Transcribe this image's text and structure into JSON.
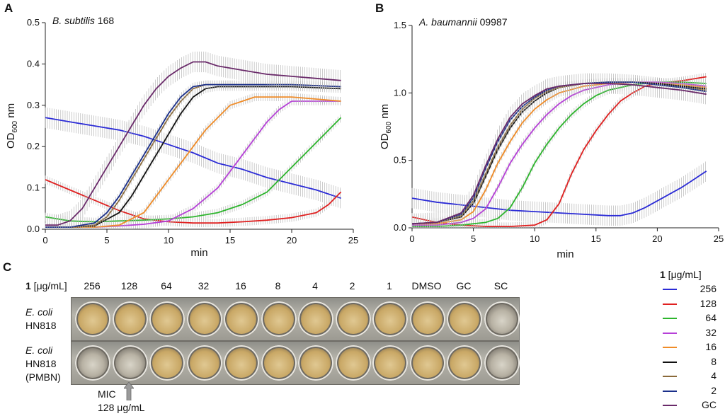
{
  "panels": {
    "a_letter": "A",
    "b_letter": "B",
    "c_letter": "C"
  },
  "series_colors": {
    "256": "#2b2bd6",
    "128": "#e02020",
    "64": "#2db52d",
    "32": "#b640d8",
    "16": "#f08c28",
    "8": "#111111",
    "4": "#8b6a3a",
    "2": "#1a2f8a",
    "GC": "#6a2a6a"
  },
  "chart_data": [
    {
      "type": "line",
      "panel": "A",
      "title_italic": "B. subtilis",
      "title_rest": " 168",
      "xlabel": "min",
      "ylabel_main": "OD",
      "ylabel_sub": "600",
      "ylabel_tail": " nm",
      "xlim": [
        0,
        25
      ],
      "ylim": [
        0,
        0.5
      ],
      "xticks": [
        "0",
        "5",
        "10",
        "15",
        "20",
        "25"
      ],
      "yticks": [
        "0.0",
        "0.1",
        "0.2",
        "0.3",
        "0.4",
        "0.5"
      ],
      "series": [
        {
          "name": "256",
          "x": [
            0,
            2,
            4,
            6,
            8,
            10,
            12,
            14,
            16,
            18,
            20,
            22,
            24
          ],
          "y": [
            0.27,
            0.26,
            0.25,
            0.24,
            0.225,
            0.205,
            0.185,
            0.16,
            0.145,
            0.125,
            0.11,
            0.095,
            0.075
          ]
        },
        {
          "name": "128",
          "x": [
            0,
            2,
            4,
            6,
            8,
            10,
            12,
            14,
            16,
            18,
            20,
            22,
            23,
            24
          ],
          "y": [
            0.12,
            0.095,
            0.07,
            0.045,
            0.025,
            0.018,
            0.015,
            0.015,
            0.018,
            0.022,
            0.028,
            0.04,
            0.06,
            0.09
          ]
        },
        {
          "name": "64",
          "x": [
            0,
            2,
            4,
            6,
            8,
            10,
            12,
            14,
            16,
            18,
            19,
            20,
            21,
            22,
            23,
            24
          ],
          "y": [
            0.03,
            0.02,
            0.018,
            0.02,
            0.022,
            0.025,
            0.03,
            0.04,
            0.06,
            0.09,
            0.12,
            0.15,
            0.18,
            0.21,
            0.24,
            0.27
          ]
        },
        {
          "name": "32",
          "x": [
            0,
            2,
            4,
            6,
            8,
            10,
            12,
            14,
            15,
            16,
            17,
            18,
            19,
            20,
            22,
            24
          ],
          "y": [
            0.005,
            0.005,
            0.005,
            0.008,
            0.012,
            0.02,
            0.05,
            0.1,
            0.14,
            0.18,
            0.22,
            0.26,
            0.29,
            0.31,
            0.31,
            0.31
          ]
        },
        {
          "name": "16",
          "x": [
            0,
            2,
            4,
            6,
            8,
            9,
            10,
            11,
            12,
            13,
            14,
            15,
            16,
            17,
            20,
            24
          ],
          "y": [
            0.005,
            0.005,
            0.005,
            0.01,
            0.04,
            0.08,
            0.12,
            0.16,
            0.2,
            0.24,
            0.27,
            0.3,
            0.31,
            0.32,
            0.32,
            0.31
          ]
        },
        {
          "name": "8",
          "x": [
            0,
            2,
            4,
            6,
            7,
            8,
            9,
            10,
            11,
            12,
            13,
            14,
            16,
            20,
            24
          ],
          "y": [
            0.005,
            0.005,
            0.008,
            0.04,
            0.08,
            0.13,
            0.18,
            0.23,
            0.28,
            0.32,
            0.34,
            0.345,
            0.345,
            0.345,
            0.34
          ]
        },
        {
          "name": "4",
          "x": [
            0,
            2,
            4,
            5,
            6,
            7,
            8,
            9,
            10,
            11,
            12,
            13,
            14,
            16,
            20,
            24
          ],
          "y": [
            0.005,
            0.005,
            0.01,
            0.03,
            0.07,
            0.12,
            0.17,
            0.22,
            0.27,
            0.31,
            0.34,
            0.35,
            0.35,
            0.35,
            0.35,
            0.345
          ]
        },
        {
          "name": "2",
          "x": [
            0,
            2,
            4,
            5,
            6,
            7,
            8,
            9,
            10,
            11,
            12,
            13,
            14,
            16,
            20,
            24
          ],
          "y": [
            0.005,
            0.005,
            0.015,
            0.04,
            0.08,
            0.13,
            0.18,
            0.23,
            0.28,
            0.32,
            0.345,
            0.35,
            0.35,
            0.35,
            0.35,
            0.345
          ]
        },
        {
          "name": "GC",
          "x": [
            0,
            1,
            2,
            3,
            4,
            5,
            6,
            7,
            8,
            9,
            10,
            11,
            12,
            13,
            14,
            16,
            18,
            20,
            22,
            24
          ],
          "y": [
            0.01,
            0.01,
            0.02,
            0.05,
            0.1,
            0.15,
            0.2,
            0.25,
            0.3,
            0.34,
            0.37,
            0.39,
            0.405,
            0.405,
            0.395,
            0.385,
            0.375,
            0.37,
            0.365,
            0.36
          ]
        }
      ]
    },
    {
      "type": "line",
      "panel": "B",
      "title_italic": "A. baumannii",
      "title_rest": " 09987",
      "xlabel": "min",
      "ylabel_main": "OD",
      "ylabel_sub": "600",
      "ylabel_tail": " nm",
      "xlim": [
        0,
        25
      ],
      "ylim": [
        0,
        1.5
      ],
      "xticks": [
        "0",
        "5",
        "10",
        "15",
        "20",
        "25"
      ],
      "yticks": [
        "0.0",
        "0.5",
        "1.0",
        "1.5"
      ],
      "series": [
        {
          "name": "256",
          "x": [
            0,
            2,
            4,
            6,
            8,
            10,
            12,
            14,
            16,
            17,
            18,
            19,
            20,
            21,
            22,
            23,
            24
          ],
          "y": [
            0.22,
            0.19,
            0.17,
            0.15,
            0.13,
            0.12,
            0.11,
            0.1,
            0.09,
            0.09,
            0.11,
            0.15,
            0.2,
            0.25,
            0.3,
            0.36,
            0.42
          ]
        },
        {
          "name": "128",
          "x": [
            0,
            2,
            4,
            6,
            8,
            10,
            11,
            12,
            13,
            14,
            15,
            16,
            17,
            18,
            19,
            20,
            22,
            24
          ],
          "y": [
            0.08,
            0.04,
            0.02,
            0.01,
            0.01,
            0.02,
            0.06,
            0.18,
            0.4,
            0.58,
            0.72,
            0.84,
            0.94,
            1.0,
            1.05,
            1.07,
            1.09,
            1.12
          ]
        },
        {
          "name": "64",
          "x": [
            0,
            2,
            4,
            6,
            7,
            8,
            9,
            10,
            11,
            12,
            13,
            14,
            15,
            16,
            18,
            20,
            22,
            24
          ],
          "y": [
            0.01,
            0.01,
            0.02,
            0.04,
            0.07,
            0.15,
            0.3,
            0.48,
            0.62,
            0.74,
            0.84,
            0.92,
            0.98,
            1.02,
            1.06,
            1.08,
            1.08,
            1.07
          ]
        },
        {
          "name": "32",
          "x": [
            0,
            2,
            4,
            5,
            6,
            7,
            8,
            9,
            10,
            11,
            12,
            13,
            14,
            16,
            18,
            20,
            22,
            24
          ],
          "y": [
            0.02,
            0.02,
            0.04,
            0.07,
            0.14,
            0.3,
            0.48,
            0.62,
            0.74,
            0.84,
            0.92,
            0.98,
            1.02,
            1.06,
            1.08,
            1.08,
            1.07,
            1.05
          ]
        },
        {
          "name": "16",
          "x": [
            0,
            2,
            4,
            5,
            6,
            7,
            8,
            9,
            10,
            11,
            12,
            14,
            16,
            18,
            20,
            22,
            24
          ],
          "y": [
            0.03,
            0.03,
            0.06,
            0.12,
            0.28,
            0.48,
            0.64,
            0.78,
            0.88,
            0.95,
            1.0,
            1.05,
            1.07,
            1.08,
            1.07,
            1.06,
            1.04
          ]
        },
        {
          "name": "8",
          "x": [
            0,
            2,
            4,
            5,
            6,
            7,
            8,
            9,
            10,
            11,
            12,
            14,
            16,
            18,
            20,
            22,
            24
          ],
          "y": [
            0.03,
            0.04,
            0.08,
            0.18,
            0.38,
            0.58,
            0.74,
            0.86,
            0.94,
            1.0,
            1.04,
            1.07,
            1.08,
            1.08,
            1.07,
            1.05,
            1.03
          ]
        },
        {
          "name": "4",
          "x": [
            0,
            2,
            4,
            5,
            6,
            7,
            8,
            9,
            10,
            11,
            12,
            14,
            16,
            18,
            20,
            22,
            24
          ],
          "y": [
            0.03,
            0.04,
            0.09,
            0.2,
            0.4,
            0.6,
            0.76,
            0.88,
            0.96,
            1.01,
            1.04,
            1.07,
            1.08,
            1.08,
            1.06,
            1.04,
            1.02
          ]
        },
        {
          "name": "2",
          "x": [
            0,
            2,
            4,
            5,
            6,
            7,
            8,
            9,
            10,
            11,
            12,
            14,
            16,
            18,
            20,
            22,
            24
          ],
          "y": [
            0.03,
            0.04,
            0.1,
            0.22,
            0.44,
            0.64,
            0.8,
            0.9,
            0.97,
            1.02,
            1.05,
            1.07,
            1.08,
            1.08,
            1.06,
            1.04,
            1.01
          ]
        },
        {
          "name": "GC",
          "x": [
            0,
            2,
            4,
            5,
            6,
            7,
            8,
            9,
            10,
            11,
            12,
            14,
            16,
            18,
            20,
            22,
            24
          ],
          "y": [
            0.03,
            0.04,
            0.11,
            0.24,
            0.46,
            0.66,
            0.82,
            0.92,
            0.98,
            1.03,
            1.05,
            1.07,
            1.07,
            1.06,
            1.04,
            1.02,
            0.99
          ]
        }
      ]
    }
  ],
  "plate_panel": {
    "unit_bold": "1",
    "unit_rest": " [μg/mL]",
    "concentrations": [
      "256",
      "128",
      "64",
      "32",
      "16",
      "8",
      "4",
      "2",
      "1",
      "DMSO",
      "GC",
      "SC"
    ],
    "row1_species": "E. coli",
    "row1_strain": "HN818",
    "row2_species": "E. coli",
    "row2_strain": "HN818",
    "row2_note": "(PMBN)",
    "mic_label": "MIC",
    "mic_value": "128 μg/mL"
  },
  "legend": {
    "title_bold": "1",
    "title_rest": " [μg/mL]",
    "items": [
      "256",
      "128",
      "64",
      "32",
      "16",
      "8",
      "4",
      "2",
      "GC"
    ]
  }
}
